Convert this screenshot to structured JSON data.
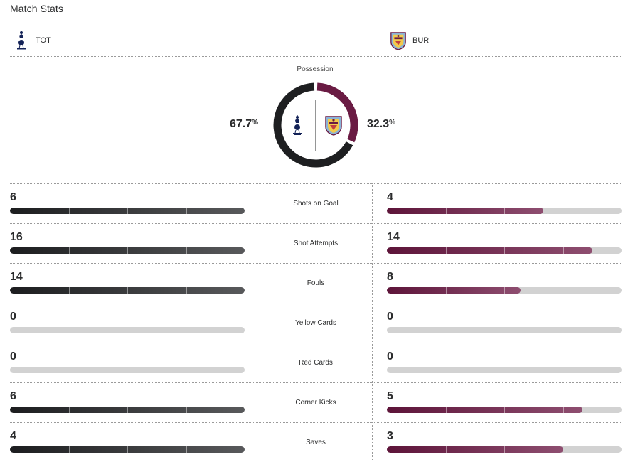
{
  "title": "Match Stats",
  "colors": {
    "home": "#1c1d1f",
    "away": "#6a1b43",
    "track": "#d2d2d2"
  },
  "teams": {
    "home": {
      "abbr": "TOT",
      "logo_icon": "tottenham-crest-icon"
    },
    "away": {
      "abbr": "BUR",
      "logo_icon": "burnley-crest-icon"
    }
  },
  "possession": {
    "label": "Possession",
    "home_pct": 67.7,
    "away_pct": 32.3,
    "home_text": "67.7",
    "away_text": "32.3",
    "unit": "%"
  },
  "stats": [
    {
      "label": "Shots on Goal",
      "home": "6",
      "away": "4",
      "home_fill": 1.0,
      "away_fill": 0.667
    },
    {
      "label": "Shot Attempts",
      "home": "16",
      "away": "14",
      "home_fill": 1.0,
      "away_fill": 0.875
    },
    {
      "label": "Fouls",
      "home": "14",
      "away": "8",
      "home_fill": 1.0,
      "away_fill": 0.571
    },
    {
      "label": "Yellow Cards",
      "home": "0",
      "away": "0",
      "home_fill": 0,
      "away_fill": 0
    },
    {
      "label": "Red Cards",
      "home": "0",
      "away": "0",
      "home_fill": 0,
      "away_fill": 0
    },
    {
      "label": "Corner Kicks",
      "home": "6",
      "away": "5",
      "home_fill": 1.0,
      "away_fill": 0.833
    },
    {
      "label": "Saves",
      "home": "4",
      "away": "3",
      "home_fill": 1.0,
      "away_fill": 0.75
    }
  ]
}
